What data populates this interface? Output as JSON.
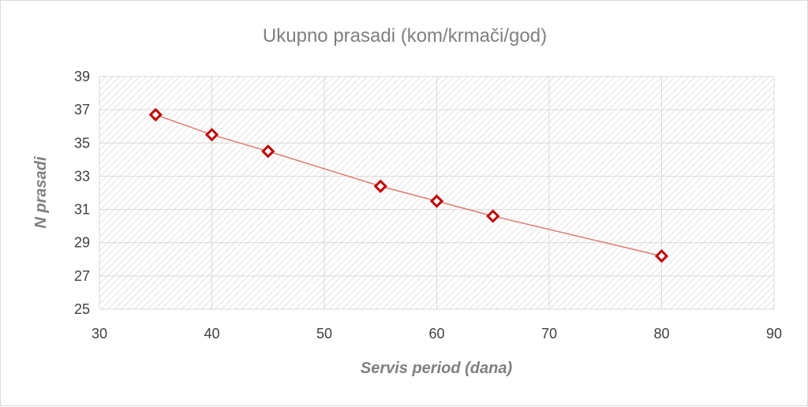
{
  "chart_data": {
    "type": "scatter",
    "title": "Ukupno prasadi (kom/krmači/god)",
    "xlabel": "Servis period (dana)",
    "ylabel": "N prasadi",
    "xlim": [
      30,
      90
    ],
    "ylim": [
      25,
      39
    ],
    "xticks": [
      "30",
      "40",
      "50",
      "60",
      "70",
      "80",
      "90"
    ],
    "yticks": [
      "25",
      "27",
      "29",
      "31",
      "33",
      "35",
      "37",
      "39"
    ],
    "grid": true,
    "plot_area_fill": "diagonal-hatch",
    "series": [
      {
        "x": [
          35,
          40,
          45,
          55,
          60,
          65,
          80
        ],
        "y": [
          36.7,
          35.5,
          34.5,
          32.4,
          31.5,
          30.6,
          28.2
        ],
        "marker": "diamond-open",
        "color": "#c00000",
        "line_color": "#e07a72"
      }
    ]
  }
}
